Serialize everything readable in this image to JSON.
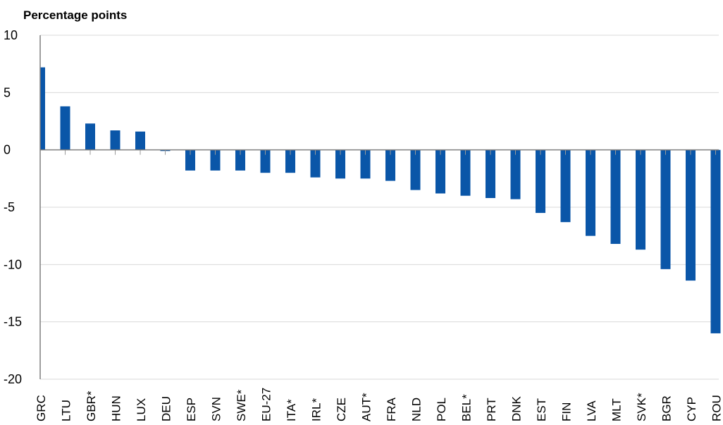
{
  "chart_data": {
    "type": "bar",
    "title": "",
    "ylabel": "Percentage points",
    "xlabel": "",
    "ylim": [
      -20,
      10
    ],
    "yticks": [
      10,
      5,
      0,
      -5,
      -10,
      -15,
      -20
    ],
    "grid": true,
    "legend": "none",
    "bar_color": "#0a56a8",
    "categories": [
      "GRC",
      "LTU",
      "GBR*",
      "HUN",
      "LUX",
      "DEU",
      "ESP",
      "SVN",
      "SWE*",
      "EU-27",
      "ITA*",
      "IRL*",
      "CZE",
      "AUT*",
      "FRA",
      "NLD",
      "POL",
      "BEL*",
      "PRT",
      "DNK",
      "EST",
      "FIN",
      "LVA",
      "MLT",
      "SVK*",
      "BGR",
      "CYP",
      "ROU"
    ],
    "values": [
      7.2,
      3.8,
      2.3,
      1.7,
      1.6,
      -0.1,
      -1.8,
      -1.8,
      -1.8,
      -2.0,
      -2.0,
      -2.4,
      -2.5,
      -2.5,
      -2.7,
      -3.5,
      -3.8,
      -4.0,
      -4.2,
      -4.3,
      -5.5,
      -6.3,
      -7.5,
      -8.2,
      -8.7,
      -10.4,
      -11.4,
      -16.0
    ]
  }
}
